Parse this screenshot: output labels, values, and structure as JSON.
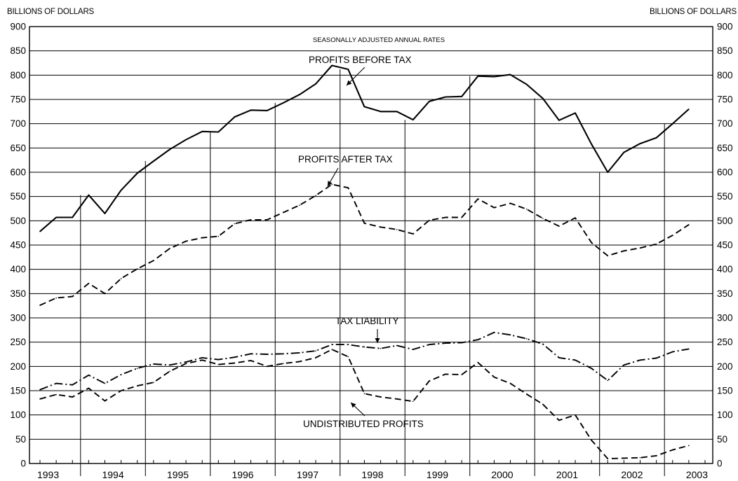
{
  "chart_data": {
    "type": "line",
    "unit_label_left": "BILLIONS OF DOLLARS",
    "unit_label_right": "BILLIONS OF DOLLARS",
    "subtitle": "SEASONALLY ADJUSTED ANNUAL RATES",
    "ylim": [
      0,
      900
    ],
    "y_ticks": [
      "0",
      "50",
      "100",
      "150",
      "200",
      "250",
      "300",
      "350",
      "400",
      "450",
      "500",
      "550",
      "600",
      "650",
      "700",
      "750",
      "800",
      "850",
      "900"
    ],
    "years": [
      "1993",
      "1994",
      "1995",
      "1996",
      "1997",
      "1998",
      "1999",
      "2000",
      "2001",
      "2002",
      "2003"
    ],
    "x_range": [
      1993.0,
      2003.25
    ],
    "grid": "horizontal",
    "series": [
      {
        "name": "PROFITS BEFORE TAX",
        "style": "solid",
        "x": [
          1993.0,
          1993.25,
          1993.5,
          1993.75,
          1994.0,
          1994.25,
          1994.5,
          1994.75,
          1995.0,
          1995.25,
          1995.5,
          1995.75,
          1996.0,
          1996.25,
          1996.5,
          1996.75,
          1997.0,
          1997.25,
          1997.5,
          1997.75,
          1998.0,
          1998.25,
          1998.5,
          1998.75,
          1999.0,
          1999.25,
          1999.5,
          1999.75,
          2000.0,
          2000.25,
          2000.5,
          2000.75,
          2001.0,
          2001.25,
          2001.5,
          2001.75,
          2002.0,
          2002.25,
          2002.5,
          2002.75,
          2003.0
        ],
        "values": [
          478,
          507,
          507,
          553,
          515,
          563,
          598,
          623,
          647,
          667,
          684,
          683,
          714,
          728,
          727,
          743,
          760,
          782,
          820,
          812,
          735,
          725,
          725,
          708,
          746,
          755,
          756,
          798,
          797,
          801,
          781,
          752,
          707,
          722,
          658,
          600,
          641,
          659,
          671,
          700,
          730
        ]
      },
      {
        "name": "PROFITS AFTER TAX",
        "style": "dashed",
        "x": [
          1993.0,
          1993.25,
          1993.5,
          1993.75,
          1994.0,
          1994.25,
          1994.5,
          1994.75,
          1995.0,
          1995.25,
          1995.5,
          1995.75,
          1996.0,
          1996.25,
          1996.5,
          1996.75,
          1997.0,
          1997.25,
          1997.5,
          1997.75,
          1998.0,
          1998.25,
          1998.5,
          1998.75,
          1999.0,
          1999.25,
          1999.5,
          1999.75,
          2000.0,
          2000.25,
          2000.5,
          2000.75,
          2001.0,
          2001.25,
          2001.5,
          2001.75,
          2002.0,
          2002.25,
          2002.5,
          2002.75,
          2003.0
        ],
        "values": [
          326,
          341,
          344,
          371,
          350,
          381,
          401,
          418,
          443,
          458,
          465,
          468,
          494,
          502,
          502,
          517,
          532,
          552,
          575,
          568,
          495,
          487,
          482,
          473,
          501,
          507,
          507,
          545,
          527,
          536,
          524,
          505,
          489,
          506,
          455,
          428,
          438,
          444,
          452,
          470,
          492
        ]
      },
      {
        "name": "TAX LIABILITY",
        "style": "dash-dot",
        "x": [
          1993.0,
          1993.25,
          1993.5,
          1993.75,
          1994.0,
          1994.25,
          1994.5,
          1994.75,
          1995.0,
          1995.25,
          1995.5,
          1995.75,
          1996.0,
          1996.25,
          1996.5,
          1996.75,
          1997.0,
          1997.25,
          1997.5,
          1997.75,
          1998.0,
          1998.25,
          1998.5,
          1998.75,
          1999.0,
          1999.25,
          1999.5,
          1999.75,
          2000.0,
          2000.25,
          2000.5,
          2000.75,
          2001.0,
          2001.25,
          2001.5,
          2001.75,
          2002.0,
          2002.25,
          2002.5,
          2002.75,
          2003.0
        ],
        "values": [
          152,
          165,
          162,
          182,
          165,
          183,
          196,
          205,
          203,
          209,
          218,
          214,
          219,
          226,
          225,
          226,
          228,
          232,
          245,
          245,
          240,
          237,
          243,
          235,
          245,
          248,
          249,
          255,
          270,
          265,
          257,
          246,
          218,
          213,
          196,
          171,
          203,
          213,
          217,
          230,
          236
        ]
      },
      {
        "name": "UNDISTRIBUTED PROFITS",
        "style": "dashed",
        "x": [
          1993.0,
          1993.25,
          1993.5,
          1993.75,
          1994.0,
          1994.25,
          1994.5,
          1994.75,
          1995.0,
          1995.25,
          1995.5,
          1995.75,
          1996.0,
          1996.25,
          1996.5,
          1996.75,
          1997.0,
          1997.25,
          1997.5,
          1997.75,
          1998.0,
          1998.25,
          1998.5,
          1998.75,
          1999.0,
          1999.25,
          1999.5,
          1999.75,
          2000.0,
          2000.25,
          2000.5,
          2000.75,
          2001.0,
          2001.25,
          2001.5,
          2001.75,
          2002.0,
          2002.25,
          2002.5,
          2002.75,
          2003.0
        ],
        "values": [
          133,
          142,
          137,
          155,
          129,
          150,
          160,
          167,
          190,
          206,
          213,
          204,
          207,
          212,
          200,
          206,
          210,
          218,
          235,
          220,
          144,
          137,
          133,
          128,
          170,
          184,
          183,
          208,
          178,
          165,
          143,
          122,
          89,
          100,
          48,
          10,
          11,
          12,
          16,
          28,
          37
        ]
      }
    ],
    "annotations": [
      {
        "text": "PROFITS BEFORE TAX"
      },
      {
        "text": "PROFITS AFTER TAX"
      },
      {
        "text": "TAX LIABILITY"
      },
      {
        "text": "UNDISTRIBUTED PROFITS"
      }
    ]
  }
}
